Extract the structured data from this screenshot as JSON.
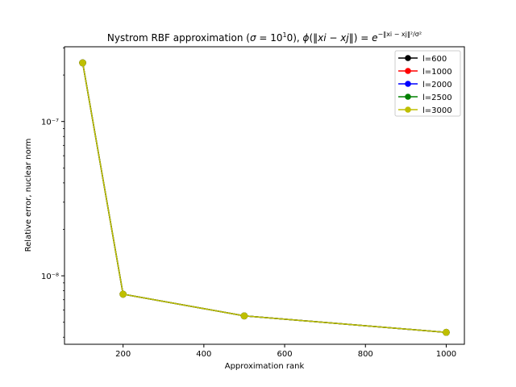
{
  "chart_data": {
    "type": "line",
    "title": "Nystrom RBF approximation (σ = 10¹0), ϕ(‖xi − xj‖) = e^(−‖xi − xj‖²/σ²)",
    "xlabel": "Approximation rank",
    "ylabel": "Relative error, nuclear norm",
    "x": [
      100,
      200,
      500,
      1000
    ],
    "xlim": [
      55,
      1045
    ],
    "ylim": [
      3.6e-09,
      3.05e-07
    ],
    "yscale": "log",
    "xticks": [
      200,
      400,
      600,
      800,
      1000
    ],
    "xtick_labels": [
      "200",
      "400",
      "600",
      "800",
      "1000"
    ],
    "yticks": [
      1e-07,
      1e-08
    ],
    "ytick_labels": [
      "10⁻⁷",
      "10⁻⁸"
    ],
    "grid": false,
    "legend_position": "top-right",
    "series": [
      {
        "name": "l=600",
        "color": "#000000",
        "values": [
          2.4e-07,
          7.6e-09,
          5.5e-09,
          4.3e-09
        ]
      },
      {
        "name": "l=1000",
        "color": "#ff0000",
        "values": [
          2.4e-07,
          7.6e-09,
          5.5e-09,
          4.3e-09
        ]
      },
      {
        "name": "l=2000",
        "color": "#0000ff",
        "values": [
          2.4e-07,
          7.6e-09,
          5.5e-09,
          4.3e-09
        ]
      },
      {
        "name": "l=2500",
        "color": "#008000",
        "values": [
          2.4e-07,
          7.6e-09,
          5.5e-09,
          4.3e-09
        ]
      },
      {
        "name": "l=3000",
        "color": "#bfbf00",
        "values": [
          2.4e-07,
          7.6e-09,
          5.5e-09,
          4.3e-09
        ]
      }
    ]
  }
}
